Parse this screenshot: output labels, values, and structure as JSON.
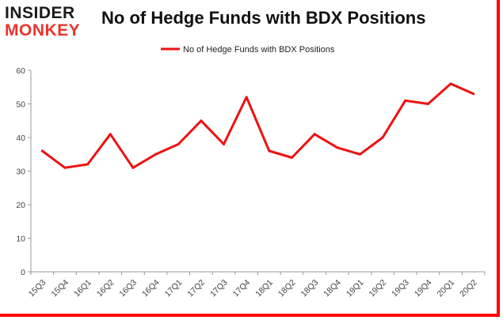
{
  "brand": {
    "line1": "INSIDER",
    "line2": "MONKEY"
  },
  "chart_data": {
    "type": "line",
    "title": "No of Hedge Funds with BDX Positions",
    "categories": [
      "15Q3",
      "15Q4",
      "16Q1",
      "16Q2",
      "16Q3",
      "16Q4",
      "17Q1",
      "17Q2",
      "17Q3",
      "17Q4",
      "18Q1",
      "18Q2",
      "18Q3",
      "18Q4",
      "19Q1",
      "19Q2",
      "19Q3",
      "19Q4",
      "20Q1",
      "20Q2"
    ],
    "series": [
      {
        "name": "No of Hedge Funds with BDX Positions",
        "values": [
          36,
          31,
          32,
          41,
          31,
          35,
          38,
          45,
          38,
          52,
          36,
          34,
          41,
          37,
          35,
          40,
          51,
          50,
          56,
          53
        ],
        "color": "#ee1111"
      }
    ],
    "ylim": [
      0,
      60
    ],
    "yticks": [
      0,
      10,
      20,
      30,
      40,
      50,
      60
    ],
    "grid": false,
    "legend": "top-center",
    "xlabel": "",
    "ylabel": ""
  }
}
